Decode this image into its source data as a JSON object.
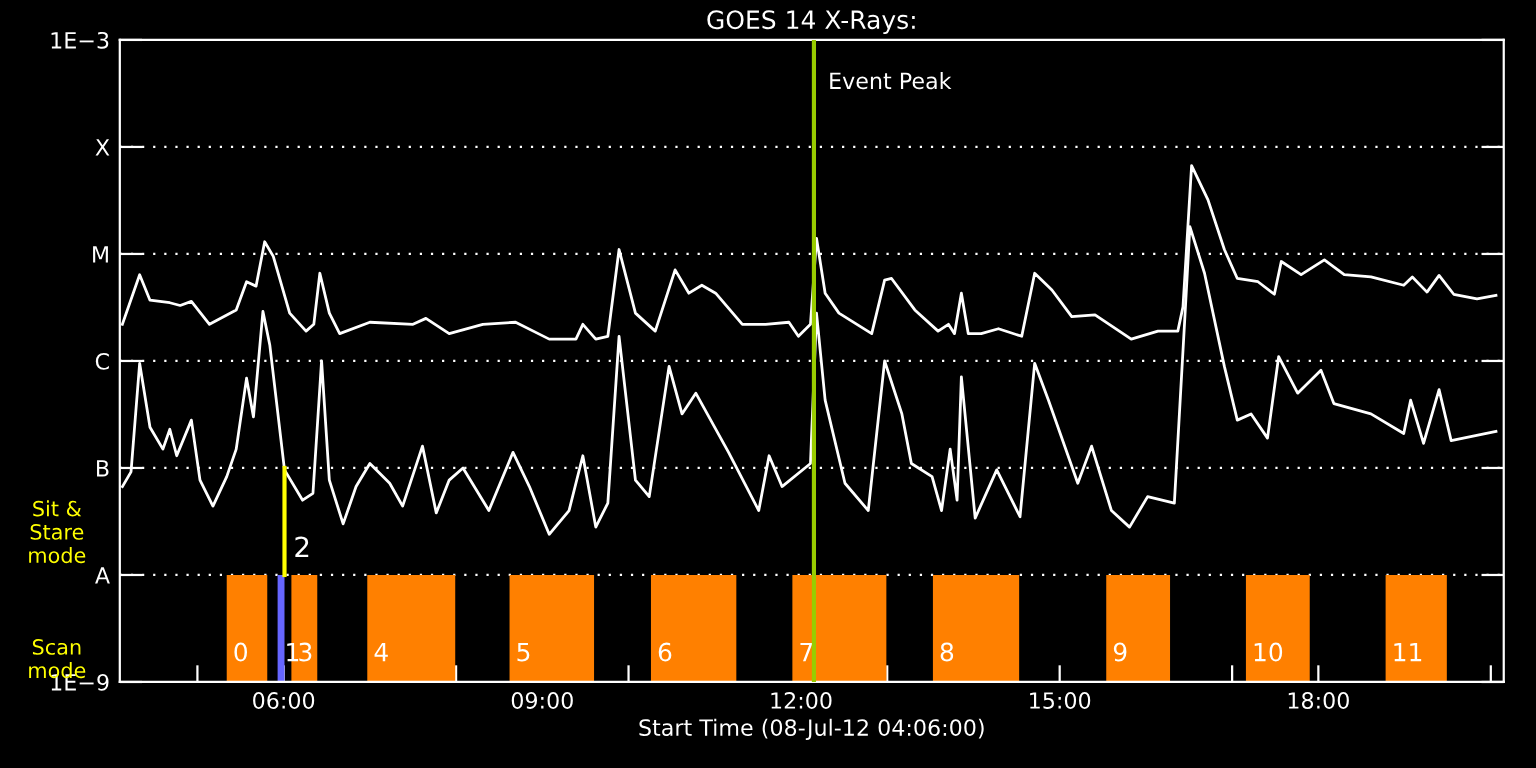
{
  "chart_data": {
    "type": "line",
    "title": "GOES 14 X-Rays:",
    "xlabel": "Start Time (08-Jul-12 04:06:00)",
    "log": "y",
    "grid": "y",
    "legend": false,
    "line_style": "solid",
    "marker": "none",
    "xlim": [
      4.1,
      20.15
    ],
    "ylim": [
      1e-09,
      0.001
    ],
    "xticks": [
      {
        "value": 5,
        "label": null
      },
      {
        "value": 6,
        "label": "06:00"
      },
      {
        "value": 7,
        "label": null
      },
      {
        "value": 8,
        "label": null
      },
      {
        "value": 9,
        "label": "09:00"
      },
      {
        "value": 10,
        "label": null
      },
      {
        "value": 11,
        "label": null
      },
      {
        "value": 12,
        "label": "12:00"
      },
      {
        "value": 13,
        "label": null
      },
      {
        "value": 14,
        "label": null
      },
      {
        "value": 15,
        "label": "15:00"
      },
      {
        "value": 16,
        "label": null
      },
      {
        "value": 17,
        "label": null
      },
      {
        "value": 18,
        "label": "18:00"
      },
      {
        "value": 19,
        "label": null
      },
      {
        "value": 20,
        "label": null
      }
    ],
    "yticks": [
      {
        "value": 1e-09,
        "label": "1E−9"
      },
      {
        "value": 1e-08,
        "label": "A"
      },
      {
        "value": 1e-07,
        "label": "B"
      },
      {
        "value": 1e-06,
        "label": "C"
      },
      {
        "value": 1e-05,
        "label": "M"
      },
      {
        "value": 0.0001,
        "label": "X"
      },
      {
        "value": 0.001,
        "label": "1E−3"
      }
    ],
    "series": [
      {
        "color": "#ffffff",
        "x": [
          4.13,
          4.33,
          4.45,
          4.68,
          4.8,
          4.93,
          5.14,
          5.45,
          5.57,
          5.68,
          5.78,
          5.88,
          6.07,
          6.26,
          6.35,
          6.42,
          6.53,
          6.65,
          7.0,
          7.5,
          7.65,
          7.92,
          8.31,
          8.69,
          9.08,
          9.39,
          9.47,
          9.62,
          9.76,
          9.89,
          10.08,
          10.31,
          10.54,
          10.7,
          10.85,
          11.01,
          11.32,
          11.59,
          11.86,
          11.97,
          12.11,
          12.18,
          12.28,
          12.44,
          12.82,
          12.97,
          13.05,
          13.32,
          13.59,
          13.71,
          13.78,
          13.86,
          13.94,
          14.09,
          14.29,
          14.56,
          14.71,
          14.91,
          15.14,
          15.41,
          15.83,
          16.14,
          16.37,
          16.43,
          16.53,
          16.72,
          16.91,
          17.06,
          17.3,
          17.49,
          17.57,
          17.8,
          18.07,
          18.3,
          18.61,
          18.99,
          19.09,
          19.26,
          19.4,
          19.57,
          19.84,
          20.06
        ],
        "values": [
          2.2e-06,
          6.4e-06,
          3.7e-06,
          3.5e-06,
          3.3e-06,
          3.6e-06,
          2.2e-06,
          3e-06,
          5.5e-06,
          5e-06,
          1.3e-05,
          9.5e-06,
          2.8e-06,
          1.9e-06,
          2.2e-06,
          6.6e-06,
          2.8e-06,
          1.8e-06,
          2.3e-06,
          2.2e-06,
          2.5e-06,
          1.8e-06,
          2.2e-06,
          2.3e-06,
          1.6e-06,
          1.6e-06,
          2.2e-06,
          1.6e-06,
          1.7e-06,
          1.1e-05,
          2.8e-06,
          1.9e-06,
          7.1e-06,
          4.3e-06,
          5.1e-06,
          4.3e-06,
          2.2e-06,
          2.2e-06,
          2.3e-06,
          1.7e-06,
          2.2e-06,
          1.4e-05,
          4.3e-06,
          2.8e-06,
          1.8e-06,
          5.7e-06,
          5.9e-06,
          3e-06,
          1.9e-06,
          2.2e-06,
          1.8e-06,
          4.3e-06,
          1.8e-06,
          1.8e-06,
          2e-06,
          1.7e-06,
          6.6e-06,
          4.6e-06,
          2.6e-06,
          2.7e-06,
          1.6e-06,
          1.9e-06,
          1.9e-06,
          3.2e-06,
          6.7e-05,
          3.2e-05,
          1.1e-05,
          5.9e-06,
          5.5e-06,
          4.2e-06,
          8.5e-06,
          6.4e-06,
          8.8e-06,
          6.4e-06,
          6.1e-06,
          5.1e-06,
          6.1e-06,
          4.4e-06,
          6.3e-06,
          4.2e-06,
          3.8e-06,
          4.1e-06
        ]
      },
      {
        "color": "#ffffff",
        "x": [
          4.13,
          4.23,
          4.33,
          4.45,
          4.6,
          4.68,
          4.76,
          4.93,
          5.03,
          5.18,
          5.34,
          5.45,
          5.57,
          5.65,
          5.76,
          5.84,
          6.01,
          6.22,
          6.34,
          6.44,
          6.53,
          6.69,
          6.84,
          7.0,
          7.23,
          7.38,
          7.61,
          7.77,
          7.92,
          8.08,
          8.38,
          8.66,
          8.85,
          9.08,
          9.31,
          9.47,
          9.62,
          9.76,
          9.89,
          10.08,
          10.24,
          10.47,
          10.62,
          10.78,
          11.16,
          11.51,
          11.63,
          11.78,
          12.11,
          12.18,
          12.28,
          12.51,
          12.78,
          12.97,
          13.17,
          13.28,
          13.52,
          13.63,
          13.73,
          13.81,
          13.86,
          14.02,
          14.27,
          14.54,
          14.71,
          14.87,
          15.21,
          15.37,
          15.6,
          15.81,
          16.02,
          16.33,
          16.45,
          16.51,
          16.68,
          16.91,
          17.06,
          17.22,
          17.41,
          17.54,
          17.76,
          18.03,
          18.18,
          18.61,
          18.99,
          19.07,
          19.22,
          19.4,
          19.54,
          20.06
        ],
        "values": [
          6.7e-08,
          9.2e-08,
          9.5e-07,
          2.4e-07,
          1.5e-07,
          2.3e-07,
          1.3e-07,
          2.8e-07,
          7.7e-08,
          4.4e-08,
          8.3e-08,
          1.5e-07,
          6.9e-07,
          3e-07,
          2.9e-06,
          1.4e-06,
          9.6e-08,
          5e-08,
          5.8e-08,
          1e-06,
          7.7e-08,
          3e-08,
          6.7e-08,
          1.1e-07,
          7.2e-08,
          4.4e-08,
          1.6e-07,
          3.8e-08,
          7.7e-08,
          1e-07,
          4e-08,
          1.4e-07,
          6.7e-08,
          2.4e-08,
          4e-08,
          1.3e-07,
          2.8e-08,
          4.7e-08,
          1.7e-06,
          7.7e-08,
          5.4e-08,
          8.9e-07,
          3.2e-07,
          5e-07,
          1.4e-07,
          4e-08,
          1.3e-07,
          6.7e-08,
          1.1e-07,
          2.8e-06,
          4.3e-07,
          7.2e-08,
          4e-08,
          1e-06,
          3.2e-07,
          1.1e-07,
          8.3e-08,
          4e-08,
          1.5e-07,
          5e-08,
          7.1e-07,
          3.4e-08,
          9.6e-08,
          3.5e-08,
          9.5e-07,
          4.3e-07,
          7.2e-08,
          1.6e-07,
          4e-08,
          2.8e-08,
          5.4e-08,
          4.7e-08,
          2.4e-06,
          1.8e-05,
          6.6e-06,
          8.9e-07,
          2.8e-07,
          3.2e-07,
          1.9e-07,
          1.1e-06,
          5e-07,
          8.2e-07,
          4e-07,
          3.2e-07,
          2.1e-07,
          4.3e-07,
          1.7e-07,
          5.4e-07,
          1.8e-07,
          2.2e-07
        ]
      }
    ],
    "ref_lines": [
      {
        "axis": "x",
        "value": 12.15,
        "label": "Event Peak",
        "color": "#99cc00"
      },
      {
        "axis": "x",
        "value": 6.01,
        "color": "#ffff00"
      }
    ],
    "bands": [
      {
        "axis": "x",
        "from": 5.34,
        "to": 5.81,
        "label": "0",
        "color": "#ff8000"
      },
      {
        "axis": "x",
        "from": 5.93,
        "to": 6.01,
        "label": "1",
        "color": "#6666ff"
      },
      {
        "axis": "x",
        "from": 6.09,
        "to": 6.39,
        "label": "3",
        "color": "#ff8000"
      },
      {
        "axis": "x",
        "from": 6.97,
        "to": 7.99,
        "label": "4",
        "color": "#ff8000"
      },
      {
        "axis": "x",
        "from": 8.62,
        "to": 9.6,
        "label": "5",
        "color": "#ff8000"
      },
      {
        "axis": "x",
        "from": 10.26,
        "to": 11.25,
        "label": "6",
        "color": "#ff8000"
      },
      {
        "axis": "x",
        "from": 11.9,
        "to": 12.99,
        "label": "7",
        "color": "#ff8000"
      },
      {
        "axis": "x",
        "from": 13.53,
        "to": 14.53,
        "label": "8",
        "color": "#ff8000"
      },
      {
        "axis": "x",
        "from": 15.54,
        "to": 16.28,
        "label": "9",
        "color": "#ff8000"
      },
      {
        "axis": "x",
        "from": 17.16,
        "to": 17.9,
        "label": "10",
        "color": "#ff8000"
      },
      {
        "axis": "x",
        "from": 18.78,
        "to": 19.49,
        "label": "11",
        "color": "#ff8000"
      }
    ],
    "annotations": [
      "Sit & Stare mode",
      "Scan mode",
      {
        "text": "2",
        "x": 6.01,
        "y": 1e-08
      }
    ]
  }
}
